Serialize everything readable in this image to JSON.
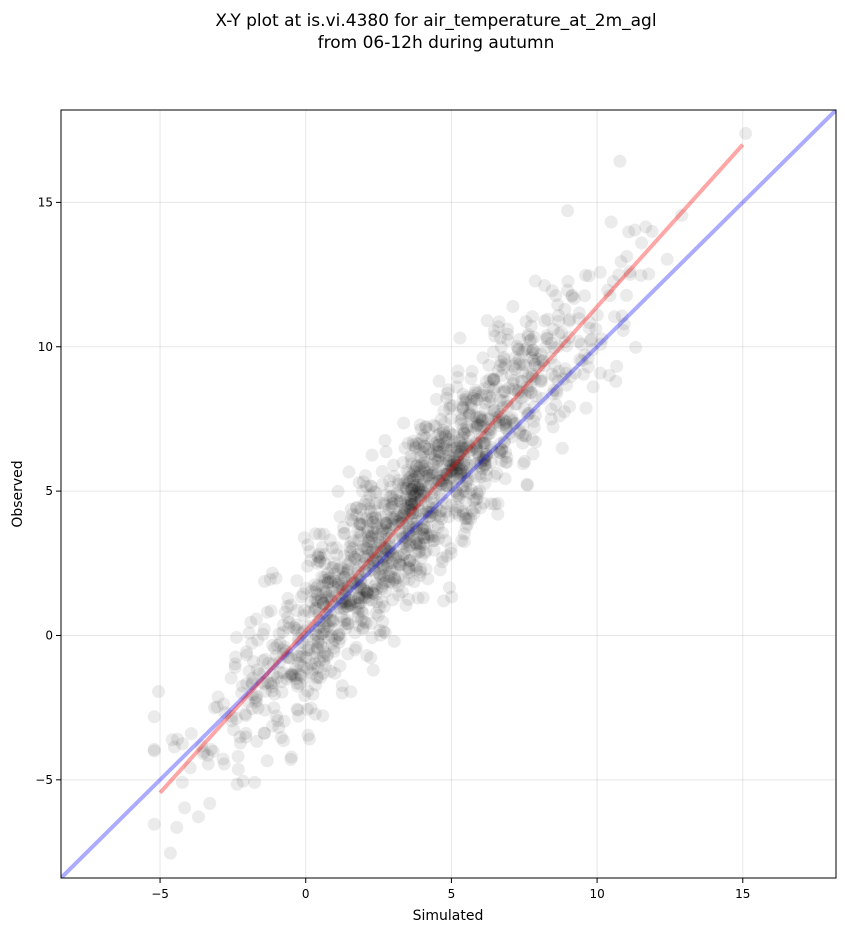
{
  "chart_data": {
    "type": "scatter",
    "title_line1": "X-Y plot at is.vi.4380 for air_temperature_at_2m_agl",
    "title_line2": "from 06-12h during autumn",
    "xlabel": "Simulated",
    "ylabel": "Observed",
    "xlim": [
      -8.4,
      18.2
    ],
    "ylim": [
      -8.4,
      18.2
    ],
    "xticks": [
      -5,
      0,
      5,
      10,
      15
    ],
    "yticks": [
      -5,
      0,
      5,
      10,
      15
    ],
    "xtick_labels": [
      "−5",
      "0",
      "5",
      "10",
      "15"
    ],
    "ytick_labels": [
      "−5",
      "0",
      "5",
      "10",
      "15"
    ],
    "grid": true,
    "point_color": "#000000",
    "point_opacity": 0.08,
    "regression_line": {
      "color": "#ff0000",
      "opacity": 0.35,
      "x": [
        -5,
        15
      ],
      "y": [
        -5.45,
        17.0
      ]
    },
    "identity_line": {
      "color": "#0000ff",
      "opacity": 0.33,
      "x": [
        -8.4,
        18.2
      ],
      "y": [
        -8.4,
        18.2
      ]
    },
    "points_generated": {
      "count": 1500,
      "seed": 4380,
      "x_mean": 3.6,
      "x_sd": 3.1,
      "slope": 1.12,
      "intercept": 0.15,
      "noise_sd": 1.4
    }
  }
}
